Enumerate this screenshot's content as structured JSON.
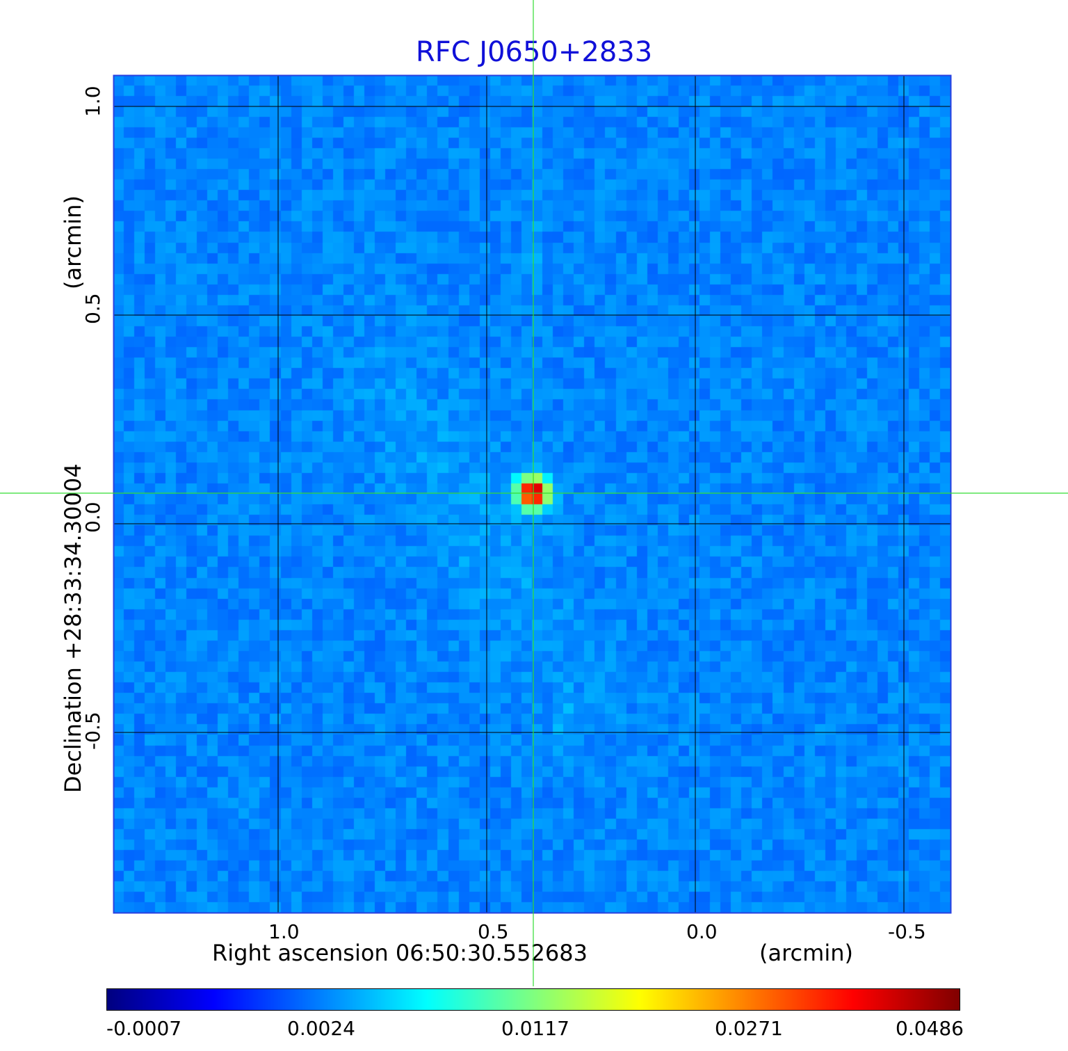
{
  "title": "RFC J0650+2833",
  "axes": {
    "xlabel": "Right ascension  06:50:30.552683",
    "xunit": "(arcmin)",
    "ylabel": "Declination  +28:33:34.30004",
    "yunit": "(arcmin)",
    "xticks": [
      "1.0",
      "0.5",
      "0.0",
      "-0.5"
    ],
    "yticks": [
      "1.0",
      "0.5",
      "0.0",
      "-0.5"
    ]
  },
  "colorbar": {
    "ticks": [
      "-0.0007",
      "0.0024",
      "0.0117",
      "0.0271",
      "0.0486"
    ]
  },
  "colors": {
    "title": "#1010d8",
    "grid": "#000000",
    "crosshair": "#33dd33",
    "background_map": "#1a4cf0"
  },
  "source": {
    "x_arcmin": 0.39,
    "y_arcmin": 0.07
  }
}
